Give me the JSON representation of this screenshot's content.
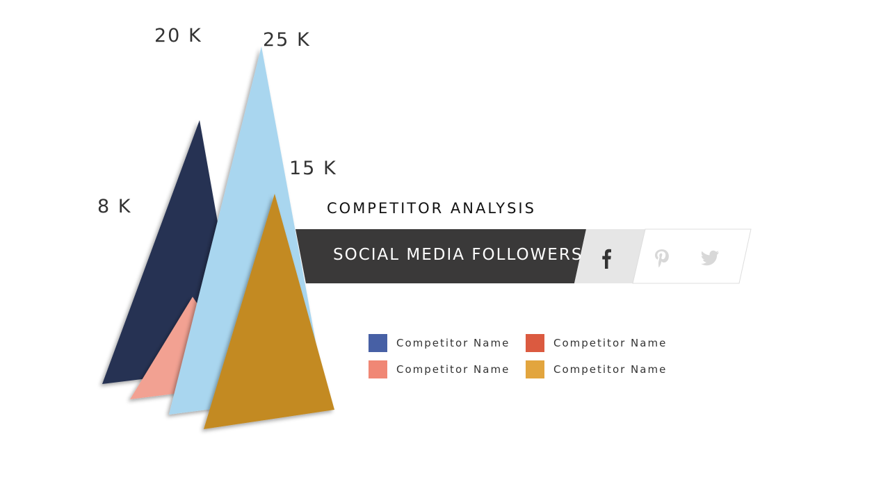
{
  "chart_data": {
    "type": "bar",
    "title": "COMPETITOR ANALYSIS",
    "subtitle": "SOCIAL MEDIA FOLLOWERS",
    "series": [
      {
        "value": 20,
        "label": "20 K",
        "color": "#263252"
      },
      {
        "value": 8,
        "label": "8 K",
        "color": "#f2a192"
      },
      {
        "value": 25,
        "label": "25 K",
        "color": "#a9d6ef"
      },
      {
        "value": 15,
        "label": "15 K",
        "color": "#c38a22"
      }
    ],
    "legend": [
      {
        "label": "Competitor Name",
        "color": "#4760a5"
      },
      {
        "label": "Competitor Name",
        "color": "#db5a40"
      },
      {
        "label": "Competitor Name",
        "color": "#f08775"
      },
      {
        "label": "Competitor Name",
        "color": "#e2a53e"
      }
    ],
    "legend_placement": "bottom-right"
  },
  "social": {
    "active": "facebook",
    "icons": [
      "facebook-icon",
      "pinterest-icon",
      "twitter-icon"
    ]
  },
  "colors": {
    "banner": "#3a3939",
    "tab_active": "#e6e6e6",
    "tab_border": "#dddddd",
    "icon_active": "#333333",
    "icon_inactive": "#d8d8d8"
  }
}
